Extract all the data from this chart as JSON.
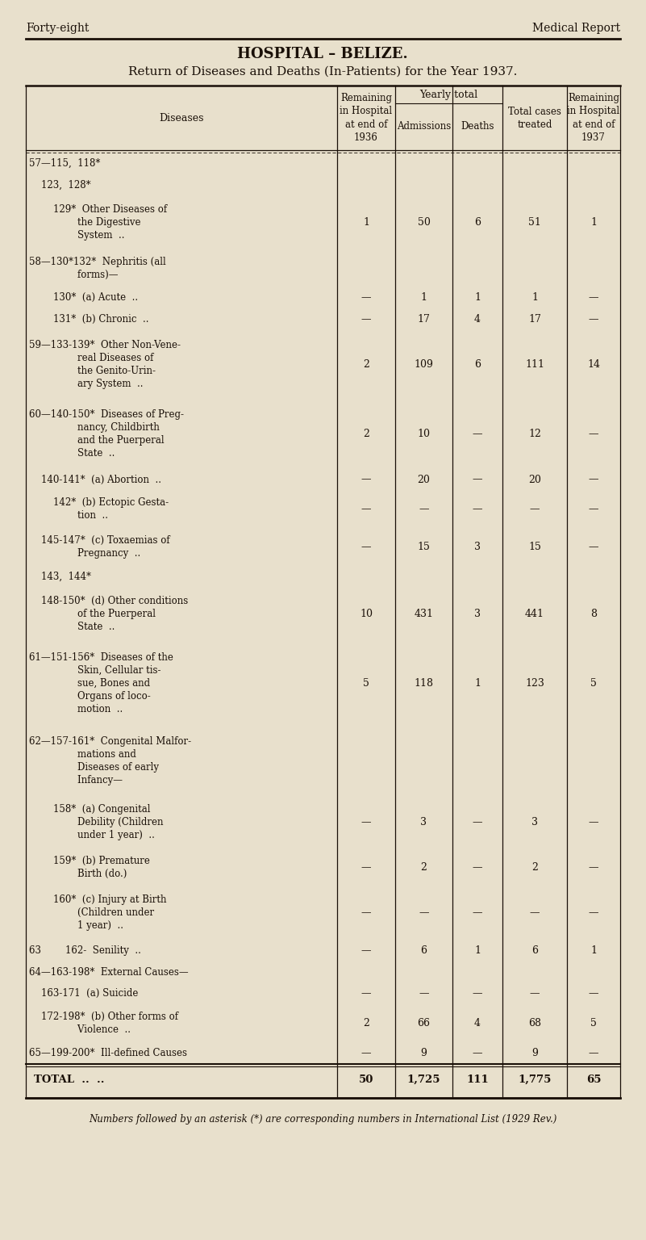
{
  "page_header_left": "Forty-eight",
  "page_header_right": "Medical Report",
  "title": "HOSPITAL – BELIZE.",
  "subtitle": "Return of Diseases and Deaths (In-Patients) for the Year 1937.",
  "yearly_total_header": "Yearly total",
  "footnote": "Numbers followed by an asterisk (*) are corresponding numbers in International List (1929 Rev.)",
  "bg_color": "#e8e0cc",
  "text_color": "#1a1008",
  "table_line_color": "#1a1008",
  "rows": [
    {
      "label1": "57—115,  118*",
      "label2": "",
      "col1": "",
      "col2": "",
      "col3": "",
      "col4": "",
      "col5": "",
      "nlines": 1
    },
    {
      "label1": "    123,  128*",
      "label2": "",
      "col1": "",
      "col2": "",
      "col3": "",
      "col4": "",
      "col5": "",
      "nlines": 1
    },
    {
      "label1": "        129*  Other Diseases of",
      "label2": "                the Digestive\n                System  ..",
      "col1": "1",
      "col2": "50",
      "col3": "6",
      "col4": "51",
      "col5": "1",
      "nlines": 3
    },
    {
      "label1": "58—130*132*  Nephritis (all",
      "label2": "                forms)—",
      "col1": "",
      "col2": "",
      "col3": "",
      "col4": "",
      "col5": "",
      "nlines": 2
    },
    {
      "label1": "        130*  (a) Acute  ..",
      "label2": "",
      "col1": "—",
      "col2": "1",
      "col3": "1",
      "col4": "1",
      "col5": "—",
      "nlines": 1
    },
    {
      "label1": "        131*  (b) Chronic  ..",
      "label2": "",
      "col1": "—",
      "col2": "17",
      "col3": "4",
      "col4": "17",
      "col5": "—",
      "nlines": 1
    },
    {
      "label1": "59—133-139*  Other Non-Vene-",
      "label2": "                real Diseases of\n                the Genito-Urin-\n                ary System  ..",
      "col1": "2",
      "col2": "109",
      "col3": "6",
      "col4": "111",
      "col5": "14",
      "nlines": 4
    },
    {
      "label1": "60—140-150*  Diseases of Preg-",
      "label2": "                nancy, Childbirth\n                and the Puerperal\n                State  ..",
      "col1": "2",
      "col2": "10",
      "col3": "—",
      "col4": "12",
      "col5": "—",
      "nlines": 4
    },
    {
      "label1": "    140-141*  (a) Abortion  ..",
      "label2": "",
      "col1": "—",
      "col2": "20",
      "col3": "—",
      "col4": "20",
      "col5": "—",
      "nlines": 1
    },
    {
      "label1": "        142*  (b) Ectopic Gesta-",
      "label2": "                tion  ..",
      "col1": "—",
      "col2": "—",
      "col3": "—",
      "col4": "—",
      "col5": "—",
      "nlines": 2
    },
    {
      "label1": "    145-147*  (c) Toxaemias of",
      "label2": "                Pregnancy  ..",
      "col1": "—",
      "col2": "15",
      "col3": "3",
      "col4": "15",
      "col5": "—",
      "nlines": 2
    },
    {
      "label1": "    143,  144*",
      "label2": "",
      "col1": "",
      "col2": "",
      "col3": "",
      "col4": "",
      "col5": "",
      "nlines": 1
    },
    {
      "label1": "    148-150*  (d) Other conditions",
      "label2": "                of the Puerperal\n                State  ..",
      "col1": "10",
      "col2": "431",
      "col3": "3",
      "col4": "441",
      "col5": "8",
      "nlines": 3
    },
    {
      "label1": "61—151-156*  Diseases of the",
      "label2": "                Skin, Cellular tis-\n                sue, Bones and\n                Organs of loco-\n                motion  ..",
      "col1": "5",
      "col2": "118",
      "col3": "1",
      "col4": "123",
      "col5": "5",
      "nlines": 5
    },
    {
      "label1": "62—157-161*  Congenital Malfor-",
      "label2": "                mations and\n                Diseases of early\n                Infancy—",
      "col1": "",
      "col2": "",
      "col3": "",
      "col4": "",
      "col5": "",
      "nlines": 4
    },
    {
      "label1": "        158*  (a) Congenital",
      "label2": "                Debility (Children\n                under 1 year)  ..",
      "col1": "—",
      "col2": "3",
      "col3": "—",
      "col4": "3",
      "col5": "—",
      "nlines": 3
    },
    {
      "label1": "        159*  (b) Premature",
      "label2": "                Birth (do.)",
      "col1": "—",
      "col2": "2",
      "col3": "—",
      "col4": "2",
      "col5": "—",
      "nlines": 2
    },
    {
      "label1": "        160*  (c) Injury at Birth",
      "label2": "                (Children under\n                1 year)  ..",
      "col1": "—",
      "col2": "—",
      "col3": "—",
      "col4": "—",
      "col5": "—",
      "nlines": 3
    },
    {
      "label1": "63        162-  Senility  ..",
      "label2": "",
      "col1": "—",
      "col2": "6",
      "col3": "1",
      "col4": "6",
      "col5": "1",
      "nlines": 1
    },
    {
      "label1": "64—163-198*  External Causes—",
      "label2": "",
      "col1": "",
      "col2": "",
      "col3": "",
      "col4": "",
      "col5": "",
      "nlines": 1
    },
    {
      "label1": "    163-171  (a) Suicide",
      "label2": "",
      "col1": "—",
      "col2": "—",
      "col3": "—",
      "col4": "—",
      "col5": "—",
      "nlines": 1
    },
    {
      "label1": "    172-198*  (b) Other forms of",
      "label2": "                Violence  ..",
      "col1": "2",
      "col2": "66",
      "col3": "4",
      "col4": "68",
      "col5": "5",
      "nlines": 2
    },
    {
      "label1": "65—199-200*  Ill-defined Causes",
      "label2": "",
      "col1": "—",
      "col2": "9",
      "col3": "—",
      "col4": "9",
      "col5": "—",
      "nlines": 1
    },
    {
      "label1": "TOTAL  ..  ..",
      "label2": "",
      "col1": "50",
      "col2": "1,725",
      "col3": "111",
      "col4": "1,775",
      "col5": "65",
      "nlines": 1,
      "is_total": true
    }
  ]
}
